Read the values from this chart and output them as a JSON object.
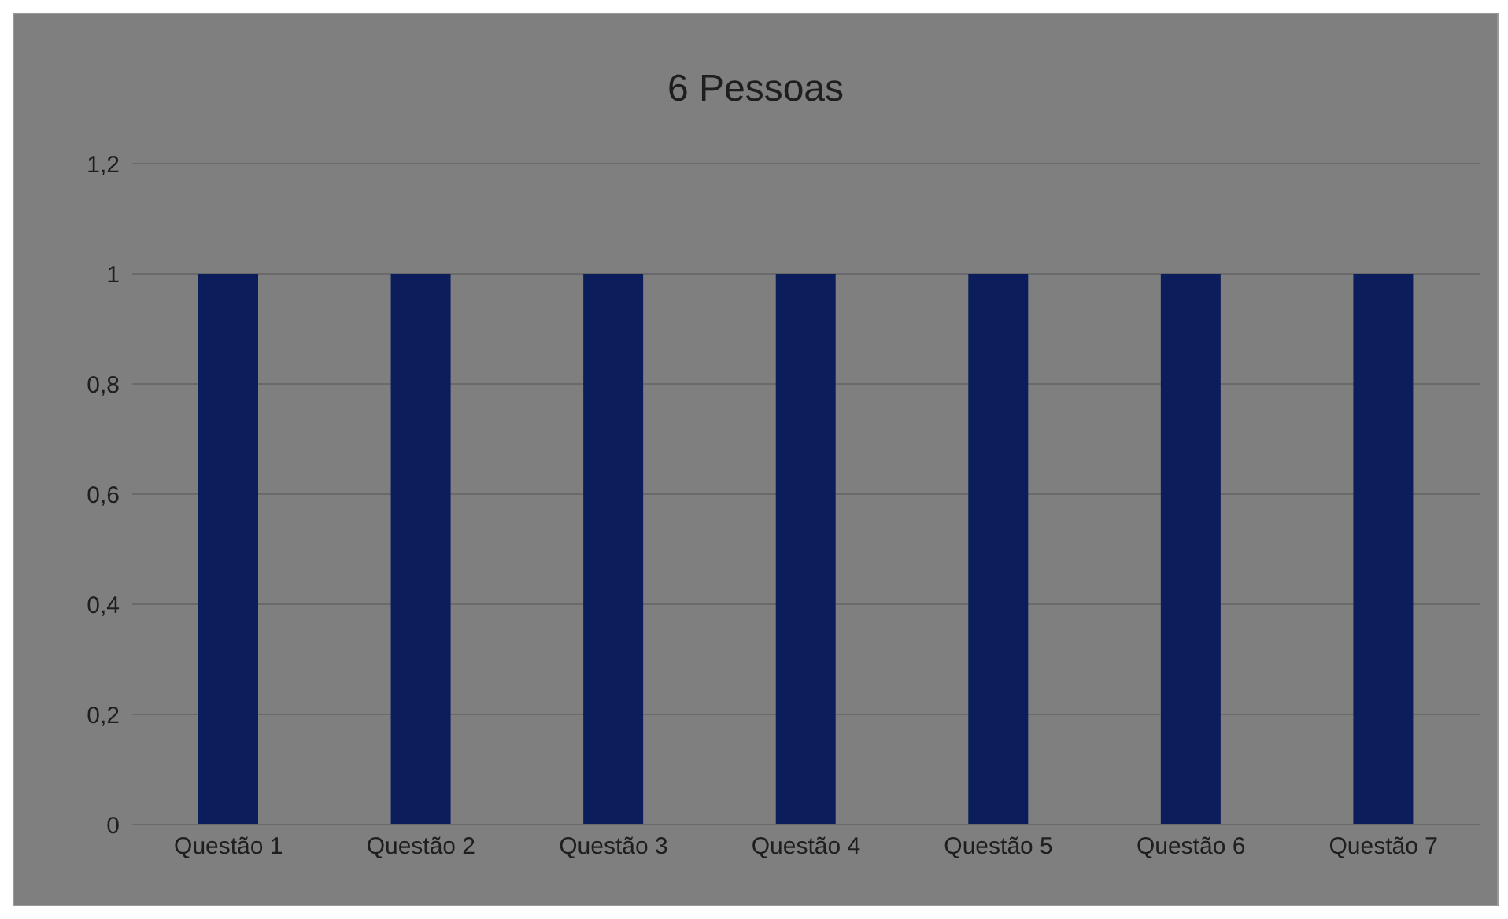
{
  "chart_data": {
    "type": "bar",
    "title": "6 Pessoas",
    "categories": [
      "Questão 1",
      "Questão 2",
      "Questão 3",
      "Questão 4",
      "Questão 5",
      "Questão 6",
      "Questão 7"
    ],
    "values": [
      1,
      1,
      1,
      1,
      1,
      1,
      1
    ],
    "color": "#0b1e5b",
    "ylim": [
      0,
      1.2
    ],
    "yticks": [
      {
        "value": 0,
        "label": "0"
      },
      {
        "value": 0.2,
        "label": "0,2"
      },
      {
        "value": 0.4,
        "label": "0,4"
      },
      {
        "value": 0.6,
        "label": "0,6"
      },
      {
        "value": 0.8,
        "label": "0,8"
      },
      {
        "value": 1,
        "label": "1"
      },
      {
        "value": 1.2,
        "label": "1,2"
      }
    ],
    "grid": "y"
  }
}
